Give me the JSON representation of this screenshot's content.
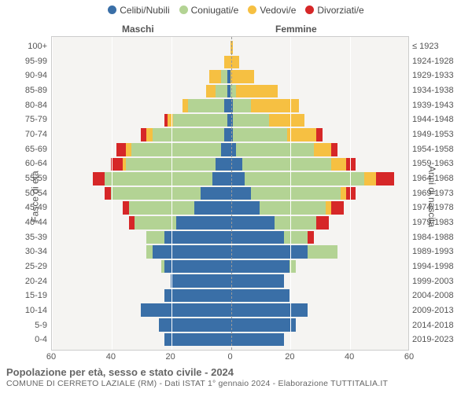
{
  "chart": {
    "type": "population-pyramid",
    "background_color": "#f5f4f2",
    "grid_color": "#ffffff",
    "border_color": "#cccccc",
    "text_color": "#555555",
    "midline_color": "#999999",
    "legend_fontsize": 12,
    "label_fontsize": 11,
    "gender_labels": {
      "male": "Maschi",
      "female": "Femmine"
    },
    "y_left_title": "Fasce di età",
    "y_right_title": "Anni di nascita",
    "x_max": 60,
    "x_ticks": [
      60,
      40,
      20,
      0,
      20,
      40,
      60
    ],
    "categories": [
      {
        "key": "celibi",
        "label": "Celibi/Nubili",
        "color": "#3a6fa7"
      },
      {
        "key": "coniugati",
        "label": "Coniugati/e",
        "color": "#b3d394"
      },
      {
        "key": "vedovi",
        "label": "Vedovi/e",
        "color": "#f6c042"
      },
      {
        "key": "divorziati",
        "label": "Divorziati/e",
        "color": "#d62728"
      }
    ],
    "rows": [
      {
        "age": "100+",
        "birth": "≤ 1923",
        "m": [
          0,
          0,
          0,
          0
        ],
        "f": [
          0,
          0,
          1,
          0
        ]
      },
      {
        "age": "95-99",
        "birth": "1924-1928",
        "m": [
          0,
          0,
          2,
          0
        ],
        "f": [
          0,
          0,
          3,
          0
        ]
      },
      {
        "age": "90-94",
        "birth": "1929-1933",
        "m": [
          1,
          2,
          4,
          0
        ],
        "f": [
          0,
          0,
          8,
          0
        ]
      },
      {
        "age": "85-89",
        "birth": "1934-1938",
        "m": [
          1,
          4,
          3,
          0
        ],
        "f": [
          0,
          2,
          14,
          0
        ]
      },
      {
        "age": "80-84",
        "birth": "1939-1943",
        "m": [
          2,
          12,
          2,
          0
        ],
        "f": [
          1,
          6,
          16,
          0
        ]
      },
      {
        "age": "75-79",
        "birth": "1944-1948",
        "m": [
          1,
          18,
          2,
          1
        ],
        "f": [
          1,
          12,
          12,
          0
        ]
      },
      {
        "age": "70-74",
        "birth": "1949-1953",
        "m": [
          2,
          24,
          2,
          2
        ],
        "f": [
          1,
          18,
          10,
          2
        ]
      },
      {
        "age": "65-69",
        "birth": "1954-1958",
        "m": [
          3,
          30,
          2,
          3
        ],
        "f": [
          2,
          26,
          6,
          2
        ]
      },
      {
        "age": "60-64",
        "birth": "1959-1963",
        "m": [
          5,
          30,
          1,
          4
        ],
        "f": [
          4,
          30,
          5,
          3
        ]
      },
      {
        "age": "55-59",
        "birth": "1964-1968",
        "m": [
          6,
          36,
          0,
          4
        ],
        "f": [
          5,
          40,
          4,
          6
        ]
      },
      {
        "age": "50-54",
        "birth": "1969-1973",
        "m": [
          10,
          30,
          0,
          2
        ],
        "f": [
          7,
          30,
          2,
          3
        ]
      },
      {
        "age": "45-49",
        "birth": "1974-1978",
        "m": [
          12,
          22,
          0,
          2
        ],
        "f": [
          10,
          22,
          2,
          4
        ]
      },
      {
        "age": "40-44",
        "birth": "1979-1983",
        "m": [
          18,
          14,
          0,
          2
        ],
        "f": [
          15,
          14,
          0,
          4
        ]
      },
      {
        "age": "35-39",
        "birth": "1984-1988",
        "m": [
          22,
          6,
          0,
          0
        ],
        "f": [
          18,
          8,
          0,
          2
        ]
      },
      {
        "age": "30-34",
        "birth": "1989-1993",
        "m": [
          26,
          2,
          0,
          0
        ],
        "f": [
          26,
          10,
          0,
          0
        ]
      },
      {
        "age": "25-29",
        "birth": "1994-1998",
        "m": [
          22,
          1,
          0,
          0
        ],
        "f": [
          20,
          2,
          0,
          0
        ]
      },
      {
        "age": "20-24",
        "birth": "1999-2003",
        "m": [
          20,
          0,
          0,
          0
        ],
        "f": [
          18,
          0,
          0,
          0
        ]
      },
      {
        "age": "15-19",
        "birth": "2004-2008",
        "m": [
          22,
          0,
          0,
          0
        ],
        "f": [
          20,
          0,
          0,
          0
        ]
      },
      {
        "age": "10-14",
        "birth": "2009-2013",
        "m": [
          30,
          0,
          0,
          0
        ],
        "f": [
          26,
          0,
          0,
          0
        ]
      },
      {
        "age": "5-9",
        "birth": "2014-2018",
        "m": [
          24,
          0,
          0,
          0
        ],
        "f": [
          22,
          0,
          0,
          0
        ]
      },
      {
        "age": "0-4",
        "birth": "2019-2023",
        "m": [
          22,
          0,
          0,
          0
        ],
        "f": [
          18,
          0,
          0,
          0
        ]
      }
    ],
    "caption_line1": "Popolazione per età, sesso e stato civile - 2024",
    "caption_line2": "COMUNE DI CERRETO LAZIALE (RM) - Dati ISTAT 1° gennaio 2024 - Elaborazione TUTTITALIA.IT"
  }
}
